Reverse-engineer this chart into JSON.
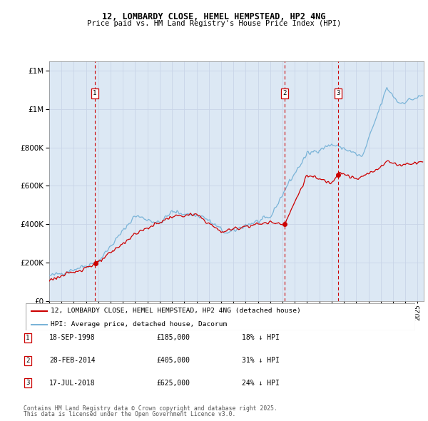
{
  "title": "12, LOMBARDY CLOSE, HEMEL HEMPSTEAD, HP2 4NG",
  "subtitle": "Price paid vs. HM Land Registry's House Price Index (HPI)",
  "legend_line1": "12, LOMBARDY CLOSE, HEMEL HEMPSTEAD, HP2 4NG (detached house)",
  "legend_line2": "HPI: Average price, detached house, Dacorum",
  "footer1": "Contains HM Land Registry data © Crown copyright and database right 2025.",
  "footer2": "This data is licensed under the Open Government Licence v3.0.",
  "transactions": [
    {
      "num": 1,
      "date": "18-SEP-1998",
      "price": 185000,
      "pct": "18%",
      "year": 1998.72
    },
    {
      "num": 2,
      "date": "28-FEB-2014",
      "price": 405000,
      "pct": "31%",
      "year": 2014.16
    },
    {
      "num": 3,
      "date": "17-JUL-2018",
      "price": 625000,
      "pct": "24%",
      "year": 2018.54
    }
  ],
  "hpi_color": "#7ab4d8",
  "price_color": "#cc0000",
  "grid_color": "#c8d4e8",
  "background_color": "#dce8f4",
  "ylim": [
    0,
    1250000
  ],
  "xlim": [
    1995,
    2025.5
  ],
  "yticks": [
    0,
    200000,
    400000,
    600000,
    800000,
    1000000,
    1200000
  ]
}
